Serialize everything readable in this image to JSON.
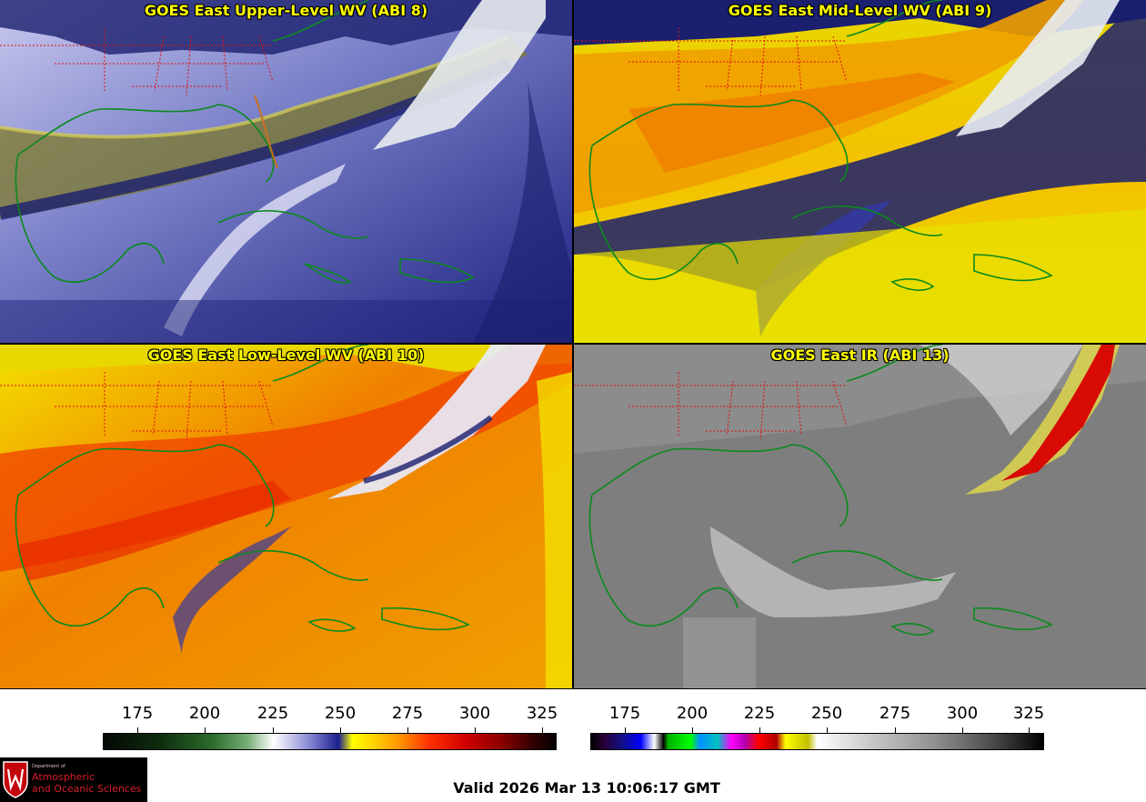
{
  "panels": [
    {
      "title": "GOES East Upper-Level WV (ABI 8)",
      "palette": "wv",
      "variant": "upper"
    },
    {
      "title": "GOES East Mid-Level WV (ABI 9)",
      "palette": "wv",
      "variant": "mid"
    },
    {
      "title": "GOES East Low-Level WV (ABI 10)",
      "palette": "wv",
      "variant": "low"
    },
    {
      "title": "GOES East IR (ABI 13)",
      "palette": "ir",
      "variant": "ir"
    }
  ],
  "colorbars": {
    "left": {
      "ticks": [
        "175",
        "200",
        "225",
        "250",
        "275",
        "300",
        "325"
      ]
    },
    "right": {
      "ticks": [
        "175",
        "200",
        "225",
        "250",
        "275",
        "300",
        "325"
      ]
    }
  },
  "logo": {
    "dept": "Department of",
    "line1": "Atmospheric",
    "line2": "and Oceanic Sciences"
  },
  "valid_time": "Valid 2026 Mar 13 10:06:17 GMT",
  "colors": {
    "coastline": "#0b8a1e",
    "state_border": "#e01010",
    "title": "#ffff00"
  },
  "icons": [
    "uw-crest-icon"
  ]
}
